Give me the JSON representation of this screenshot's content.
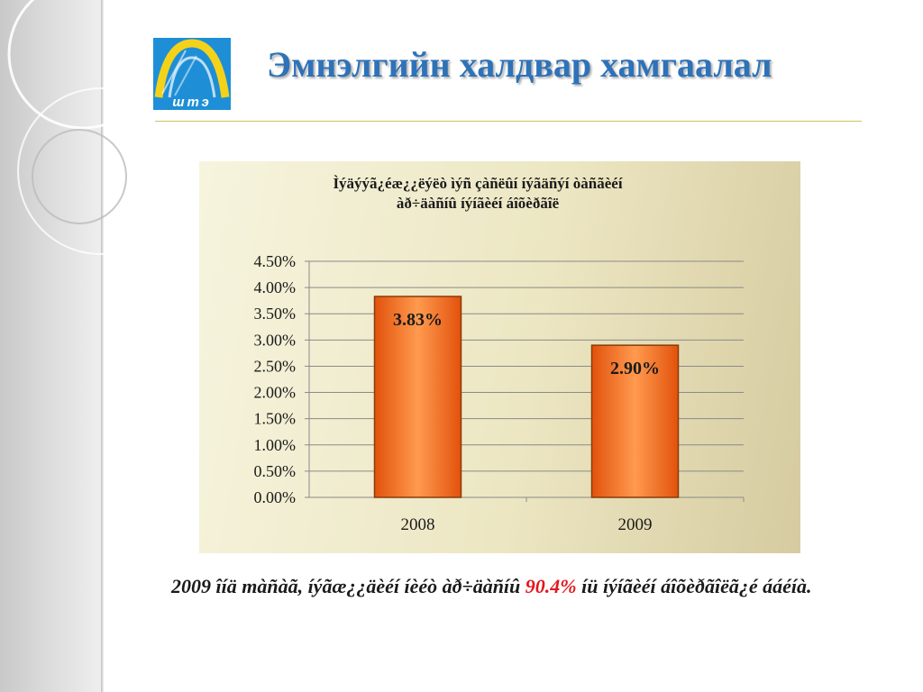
{
  "slide": {
    "title": "Эмнэлгийн халдвар хамгаалал",
    "logo_text": "штэ"
  },
  "chart_data": {
    "type": "bar",
    "title_line1": "Ìýäýýã¿éæ¿¿ëýëò ìýñ çàñëûí íýãäñýí òàñãèéí",
    "title_line2": "àð÷äàñíû íýíãèéí áîõèðãîë",
    "categories": [
      "2008",
      "2009"
    ],
    "values": [
      3.83,
      2.9
    ],
    "value_labels": [
      "3.83%",
      "2.90%"
    ],
    "yticks": [
      "0.00%",
      "0.50%",
      "1.00%",
      "1.50%",
      "2.00%",
      "2.50%",
      "3.00%",
      "3.50%",
      "4.00%",
      "4.50%"
    ],
    "ylim": [
      0,
      4.5
    ],
    "ytick_step": 0.5,
    "grid": true,
    "bar_color": "#f26a1e",
    "bar_edge_color": "#8a3a08",
    "xlabel": "",
    "ylabel": ""
  },
  "caption": {
    "before": "2009 îíä màñàã, íýãæ¿¿äèéí íèéò àð÷äàñíû ",
    "highlight": "90.4%",
    "after": " íü íýíãèéí áîõèðãîëã¿é ááéíà."
  },
  "colors": {
    "title": "#2e72b8",
    "highlight": "#e0191e",
    "logo_blue": "#1e8fd6",
    "logo_yellow": "#f4d21a"
  }
}
